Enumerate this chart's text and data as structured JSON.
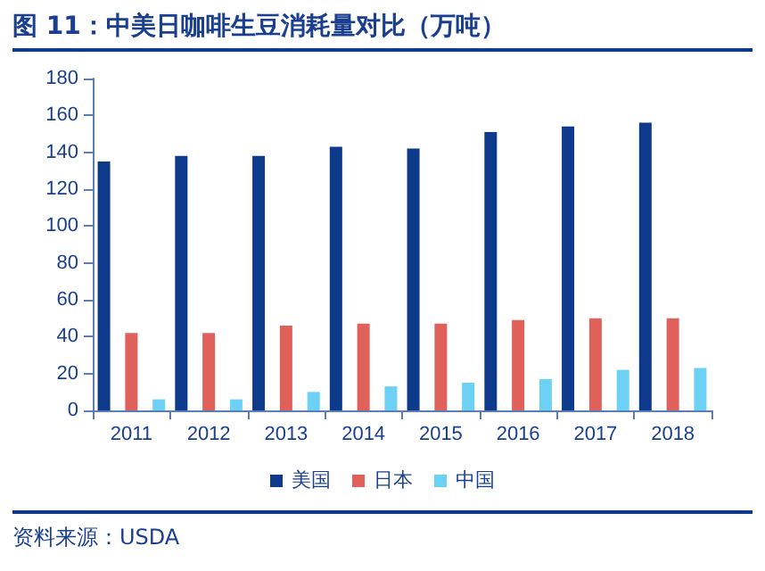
{
  "chart_data": {
    "type": "bar",
    "title": "图 11：中美日咖啡生豆消耗量对比（万吨）",
    "categories": [
      "2011",
      "2012",
      "2013",
      "2014",
      "2015",
      "2016",
      "2017",
      "2018"
    ],
    "series": [
      {
        "name": "美国",
        "color": "#0d3a8a",
        "values": [
          135,
          138,
          138,
          143,
          142,
          151,
          154,
          156
        ]
      },
      {
        "name": "日本",
        "color": "#e0605a",
        "values": [
          42,
          42,
          46,
          47,
          47,
          49,
          50,
          50
        ]
      },
      {
        "name": "中国",
        "color": "#6dd0f5",
        "values": [
          6,
          6,
          10,
          13,
          15,
          17,
          22,
          23
        ]
      }
    ],
    "ylim": [
      0,
      180
    ],
    "yticks": [
      0,
      20,
      40,
      60,
      80,
      100,
      120,
      140,
      160,
      180
    ],
    "grid": false,
    "legend": "bottom",
    "annotations": [
      "资料来源：USDA"
    ]
  }
}
